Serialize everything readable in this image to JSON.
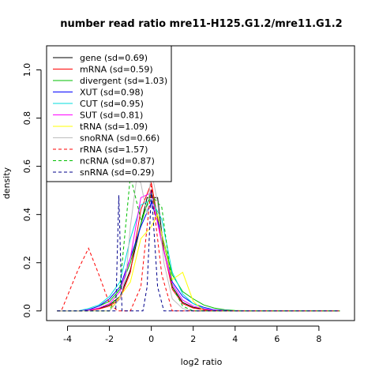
{
  "chart_data": {
    "type": "line",
    "title": "number read ratio mre11-H125.G1.2/mre11.G1.2",
    "xlabel": "log2 ratio",
    "ylabel": "density",
    "xlim": [
      -5.0,
      9.7
    ],
    "ylim": [
      -0.04,
      1.1
    ],
    "xticks": [
      -4,
      -2,
      0,
      2,
      4,
      6,
      8
    ],
    "yticks": [
      0.0,
      0.2,
      0.4,
      0.6,
      0.8,
      1.0
    ],
    "xtick_labels": [
      "-4",
      "-2",
      "0",
      "2",
      "4",
      "6",
      "8"
    ],
    "ytick_labels": [
      "0.0",
      "0.2",
      "0.4",
      "0.6",
      "0.8",
      "1.0"
    ],
    "legend_position": "top-left",
    "grid": false,
    "series": [
      {
        "name": "gene (sd=0.69)",
        "color": "#000000",
        "dash": "solid",
        "x": [
          -4.5,
          -3.5,
          -3.0,
          -2.5,
          -2.0,
          -1.5,
          -1.0,
          -0.5,
          -0.2,
          0.0,
          0.3,
          0.6,
          1.0,
          1.5,
          2.0,
          2.5,
          3.0,
          4.0,
          5.0,
          6.0,
          9.0
        ],
        "y": [
          0.0,
          0.0,
          0.003,
          0.01,
          0.025,
          0.06,
          0.17,
          0.36,
          0.47,
          0.47,
          0.47,
          0.25,
          0.1,
          0.035,
          0.015,
          0.007,
          0.003,
          0.0,
          0.0,
          0.0,
          0.0
        ]
      },
      {
        "name": "mRNA (sd=0.59)",
        "color": "#ff0000",
        "dash": "solid",
        "x": [
          -4.5,
          -3.5,
          -3.0,
          -2.5,
          -2.0,
          -1.5,
          -1.0,
          -0.5,
          0.0,
          0.5,
          1.0,
          1.5,
          2.0,
          2.5,
          3.0,
          4.0,
          9.0
        ],
        "y": [
          0.0,
          0.0,
          0.002,
          0.008,
          0.02,
          0.05,
          0.16,
          0.42,
          0.53,
          0.29,
          0.09,
          0.03,
          0.012,
          0.005,
          0.002,
          0.0,
          0.0
        ]
      },
      {
        "name": "divergent (sd=1.03)",
        "color": "#00bf00",
        "dash": "solid",
        "x": [
          -4.5,
          -3.5,
          -3.0,
          -2.5,
          -2.0,
          -1.5,
          -1.0,
          -0.5,
          0.0,
          0.5,
          1.0,
          1.5,
          2.0,
          2.5,
          3.0,
          3.5,
          4.0,
          5.0,
          9.0
        ],
        "y": [
          0.0,
          0.0,
          0.005,
          0.02,
          0.04,
          0.09,
          0.2,
          0.36,
          0.5,
          0.32,
          0.15,
          0.08,
          0.05,
          0.025,
          0.012,
          0.005,
          0.002,
          0.0,
          0.0
        ]
      },
      {
        "name": "XUT (sd=0.98)",
        "color": "#0000ff",
        "dash": "solid",
        "x": [
          -4.5,
          -3.5,
          -3.0,
          -2.5,
          -2.0,
          -1.5,
          -1.0,
          -0.5,
          0.0,
          0.5,
          1.0,
          1.5,
          2.0,
          2.5,
          3.0,
          4.0,
          9.0
        ],
        "y": [
          0.0,
          0.0,
          0.005,
          0.02,
          0.05,
          0.1,
          0.22,
          0.35,
          0.45,
          0.32,
          0.12,
          0.06,
          0.03,
          0.015,
          0.005,
          0.0,
          0.0
        ]
      },
      {
        "name": "CUT (sd=0.95)",
        "color": "#00dddd",
        "dash": "solid",
        "x": [
          -4.5,
          -3.5,
          -3.0,
          -2.5,
          -2.0,
          -1.5,
          -1.0,
          -0.5,
          0.0,
          0.5,
          1.0,
          1.5,
          2.0,
          2.5,
          3.0,
          4.0,
          9.0
        ],
        "y": [
          0.0,
          0.0,
          0.01,
          0.025,
          0.06,
          0.12,
          0.3,
          0.44,
          0.46,
          0.38,
          0.16,
          0.07,
          0.03,
          0.01,
          0.004,
          0.0,
          0.0
        ]
      },
      {
        "name": "SUT (sd=0.81)",
        "color": "#ff00ff",
        "dash": "solid",
        "x": [
          -4.5,
          -3.5,
          -3.0,
          -2.5,
          -2.0,
          -1.5,
          -1.0,
          -0.5,
          0.0,
          0.5,
          1.0,
          1.5,
          2.0,
          2.5,
          3.0,
          4.0,
          9.0
        ],
        "y": [
          0.0,
          0.0,
          0.003,
          0.012,
          0.03,
          0.08,
          0.22,
          0.47,
          0.49,
          0.28,
          0.11,
          0.045,
          0.02,
          0.008,
          0.003,
          0.0,
          0.0
        ]
      },
      {
        "name": "tRNA (sd=1.09)",
        "color": "#ffff00",
        "dash": "solid",
        "x": [
          -4.5,
          -2.0,
          -1.5,
          -1.0,
          -0.5,
          0.0,
          0.3,
          0.6,
          1.0,
          1.5,
          2.0,
          2.5,
          3.0,
          9.0
        ],
        "y": [
          0.0,
          0.0,
          0.06,
          0.12,
          0.3,
          0.35,
          0.4,
          0.28,
          0.13,
          0.16,
          0.04,
          0.0,
          0.0,
          0.0
        ]
      },
      {
        "name": "snoRNA (sd=0.66)",
        "color": "#bebebe",
        "dash": "solid",
        "x": [
          -4.5,
          -2.0,
          -1.5,
          -1.2,
          -1.0,
          -0.7,
          -0.5,
          -0.2,
          0.0,
          0.3,
          0.6,
          1.0,
          1.5,
          2.0,
          9.0
        ],
        "y": [
          0.0,
          0.0,
          0.05,
          0.15,
          0.35,
          0.55,
          0.53,
          0.4,
          0.58,
          0.45,
          0.2,
          0.05,
          0.01,
          0.0,
          0.0
        ]
      },
      {
        "name": "rRNA (sd=1.57)",
        "color": "#ff0000",
        "dash": "dashed",
        "x": [
          -4.5,
          -4.3,
          -3.5,
          -3.0,
          -2.5,
          -2.0,
          -1.6,
          -1.5,
          -1.0,
          -0.5,
          0.0,
          0.5,
          1.0,
          1.5,
          2.0,
          9.0
        ],
        "y": [
          0.0,
          0.0,
          0.17,
          0.26,
          0.15,
          0.03,
          0.0,
          0.0,
          0.0,
          0.1,
          0.52,
          0.15,
          0.0,
          0.0,
          0.0,
          0.0
        ]
      },
      {
        "name": "ncRNA (sd=0.87)",
        "color": "#00bf00",
        "dash": "dashed",
        "x": [
          -4.5,
          -2.0,
          -1.5,
          -1.0,
          -0.5,
          0.0,
          0.5,
          1.0,
          1.5,
          2.0,
          2.5,
          3.0,
          9.0
        ],
        "y": [
          0.0,
          0.0,
          0.1,
          0.56,
          0.38,
          0.48,
          0.43,
          0.1,
          0.02,
          0.0,
          0.0,
          0.0,
          0.0
        ]
      },
      {
        "name": "snRNA (sd=0.29)",
        "color": "#00008b",
        "dash": "dashed",
        "x": [
          -4.5,
          -2.0,
          -1.7,
          -1.55,
          -1.4,
          -1.0,
          -0.4,
          -0.2,
          0.0,
          0.3,
          0.6,
          1.0,
          9.0
        ],
        "y": [
          0.0,
          0.0,
          0.0,
          0.48,
          0.0,
          0.0,
          0.0,
          0.1,
          0.5,
          0.1,
          0.0,
          0.0,
          0.0
        ]
      }
    ]
  }
}
